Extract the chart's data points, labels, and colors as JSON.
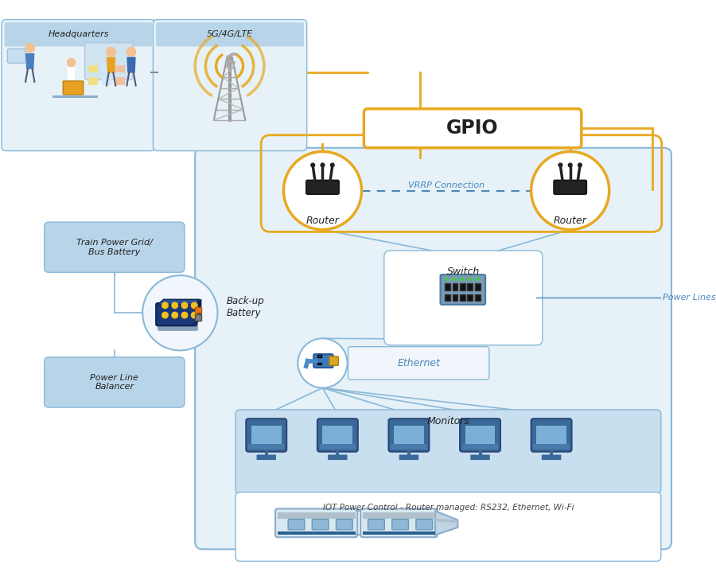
{
  "fig_w": 9.0,
  "fig_h": 7.29,
  "dpi": 100,
  "bg": "#ffffff",
  "light_blue": "#e6f2f8",
  "lighter_blue": "#edf5fb",
  "border_blue": "#8ab8d8",
  "label_blue": "#4e86b8",
  "gold": "#e8a820",
  "gold_dark": "#d4911a",
  "dark": "#222222",
  "mid_gray": "#888888",
  "box_fill": "#b8d4e8",
  "gpio_text": "GPIO",
  "vrrp_text": "VRRP Connection",
  "power_lines_text": "Power Lines",
  "ethernet_text": "Ethernet",
  "hq_label": "Headquarters",
  "tower_label": "5G/4G/LTE",
  "router_label": "Router",
  "switch_label": "Switch",
  "battery_label": "Back-up\nBattery",
  "power_grid_label": "Train Power Grid/\nBus Battery",
  "power_balancer_label": "Power Line\nBalancer",
  "monitors_label": "Monitors",
  "train_label": "IOT Power Control - Router managed: RS232, Ethernet, Wi-Fi"
}
